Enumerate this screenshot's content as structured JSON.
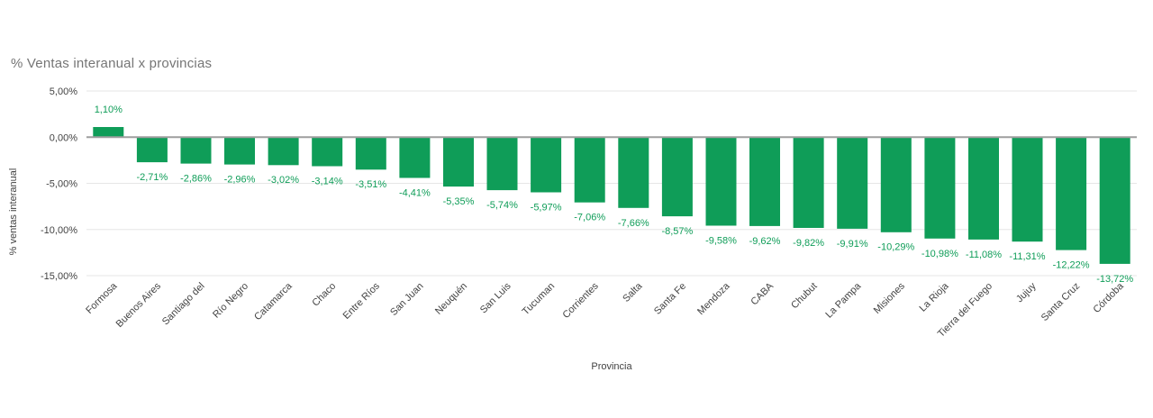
{
  "chart": {
    "title": "% Ventas interanual x provincias",
    "x_axis_title": "Provincia",
    "y_axis_title": "% ventas interanual"
  },
  "colors": {
    "bar": "#0f9d58",
    "value_label": "#0f9d58",
    "title_text": "#757575",
    "axis_text": "#424242",
    "gridline": "#e6e6e6",
    "zero_line": "#9e9e9e",
    "background": "#ffffff"
  },
  "chart_data": {
    "type": "bar",
    "title": "% Ventas interanual x provincias",
    "xlabel": "Provincia",
    "ylabel": "% ventas interanual",
    "legend": "none",
    "grid": true,
    "ylim": [
      -15,
      5
    ],
    "categories": [
      "Formosa",
      "Buenos Aires",
      "Santiago del",
      "Río Negro",
      "Catamarca",
      "Chaco",
      "Entre Ríos",
      "San Juan",
      "Neuquén",
      "San Luis",
      "Tucuman",
      "Corrientes",
      "Salta",
      "Santa Fe",
      "Mendoza",
      "CABA",
      "Chubut",
      "La Pampa",
      "Misiones",
      "La Rioja",
      "Tierra del Fuego",
      "Jujuy",
      "Santa Cruz",
      "Córdoba"
    ],
    "values": [
      1.1,
      -2.71,
      -2.86,
      -2.96,
      -3.02,
      -3.14,
      -3.51,
      -4.41,
      -5.35,
      -5.74,
      -5.97,
      -7.06,
      -7.66,
      -8.57,
      -9.58,
      -9.62,
      -9.82,
      -9.91,
      -10.29,
      -10.98,
      -11.08,
      -11.31,
      -12.22,
      -13.72
    ],
    "value_labels": [
      "1,10%",
      "-2,71%",
      "-2,86%",
      "-2,96%",
      "-3,02%",
      "-3,14%",
      "-3,51%",
      "-4,41%",
      "-5,35%",
      "-5,74%",
      "-5,97%",
      "-7,06%",
      "-7,66%",
      "-8,57%",
      "-9,58%",
      "-9,62%",
      "-9,82%",
      "-9,91%",
      "-10,29%",
      "-10,98%",
      "-11,08%",
      "-11,31%",
      "-12,22%",
      "-13,72%"
    ],
    "y_ticks": [
      {
        "value": 5,
        "label": "5,00%"
      },
      {
        "value": 0,
        "label": "0,00%"
      },
      {
        "value": -5,
        "label": "-5,00%"
      },
      {
        "value": -10,
        "label": "-10,00%"
      },
      {
        "value": -15,
        "label": "-15,00%"
      }
    ]
  }
}
